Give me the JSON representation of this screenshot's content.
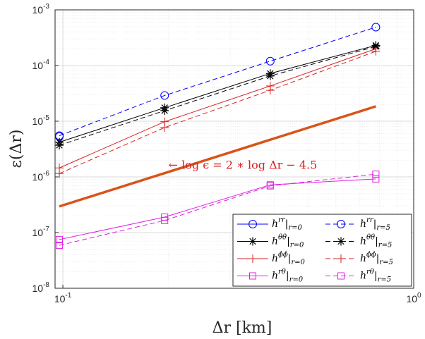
{
  "chart_data": {
    "type": "line",
    "xlabel": "Δr [km]",
    "ylabel": "ε(Δr)",
    "xscale": "log",
    "yscale": "log",
    "xlim": [
      0.095,
      1.0
    ],
    "ylim": [
      1e-08,
      0.001
    ],
    "grid": true,
    "legend_position": "bottom-right",
    "x_ticks": [
      {
        "v": 0.1,
        "m": "10",
        "e": "-1"
      },
      {
        "v": 1.0,
        "m": "10",
        "e": "0"
      }
    ],
    "y_ticks": [
      {
        "v": 1e-08,
        "m": "10",
        "e": "-8"
      },
      {
        "v": 1e-07,
        "m": "10",
        "e": "-7"
      },
      {
        "v": 1e-06,
        "m": "10",
        "e": "-6"
      },
      {
        "v": 1e-05,
        "m": "10",
        "e": "-5"
      },
      {
        "v": 0.0001,
        "m": "10",
        "e": "-4"
      },
      {
        "v": 0.001,
        "m": "10",
        "e": "-3"
      }
    ],
    "x": [
      0.0977,
      0.195,
      0.39,
      0.78
    ],
    "series": [
      {
        "name": "h^rr|_{r=0}",
        "base": "h",
        "sup": "rr",
        "sub": "r=0",
        "color": "#0000ff",
        "dash": false,
        "marker": "circle",
        "values": [
          5.3e-06,
          null,
          null,
          null
        ]
      },
      {
        "name": "h^θθ|_{r=0}",
        "base": "h",
        "sup": "θθ",
        "sub": "r=0",
        "color": "#000000",
        "dash": false,
        "marker": "star",
        "values": [
          4.2e-06,
          1.75e-05,
          7.2e-05,
          0.00023
        ]
      },
      {
        "name": "h^ϕϕ|_{r=0}",
        "base": "h",
        "sup": "ϕϕ",
        "sub": "r=0",
        "color": "#d62020",
        "dash": false,
        "marker": "plus",
        "values": [
          1.45e-06,
          9.8e-06,
          4.3e-05,
          0.0002
        ]
      },
      {
        "name": "h^rθ|_{r=0}",
        "base": "h",
        "sup": "rθ",
        "sub": "r=0",
        "color": "#e020e0",
        "dash": false,
        "marker": "square",
        "values": [
          7.5e-08,
          1.9e-07,
          7.2e-07,
          9.2e-07
        ]
      },
      {
        "name": "h^rr|_{r=5}",
        "base": "h",
        "sup": "rr",
        "sub": "r=5",
        "color": "#0000ff",
        "dash": true,
        "marker": "circle",
        "values": [
          5.5e-06,
          2.9e-05,
          0.00012,
          0.00049
        ]
      },
      {
        "name": "h^θθ|_{r=5}",
        "base": "h",
        "sup": "θθ",
        "sub": "r=5",
        "color": "#000000",
        "dash": true,
        "marker": "star",
        "values": [
          3.7e-06,
          1.55e-05,
          6.5e-05,
          0.00022
        ]
      },
      {
        "name": "h^ϕϕ|_{r=5}",
        "base": "h",
        "sup": "ϕϕ",
        "sub": "r=5",
        "color": "#d62020",
        "dash": true,
        "marker": "plus",
        "values": [
          1.15e-06,
          7.7e-06,
          3.6e-05,
          0.00018
        ]
      },
      {
        "name": "h^rθ|_{r=5}",
        "base": "h",
        "sup": "rθ",
        "sub": "r=5",
        "color": "#e020e0",
        "dash": true,
        "marker": "square",
        "values": [
          5.9e-08,
          1.65e-07,
          6.9e-07,
          1.12e-06
        ]
      }
    ],
    "reference_line": {
      "color": "#d95319",
      "x": [
        0.0977,
        0.78
      ],
      "y": [
        2.95e-07,
        1.85e-05
      ]
    },
    "annotation": {
      "text": "← log ϵ = 2 ∗ log Δr − 4.5",
      "color": "#d62020",
      "x": 0.2,
      "y": 1.4e-06
    }
  }
}
